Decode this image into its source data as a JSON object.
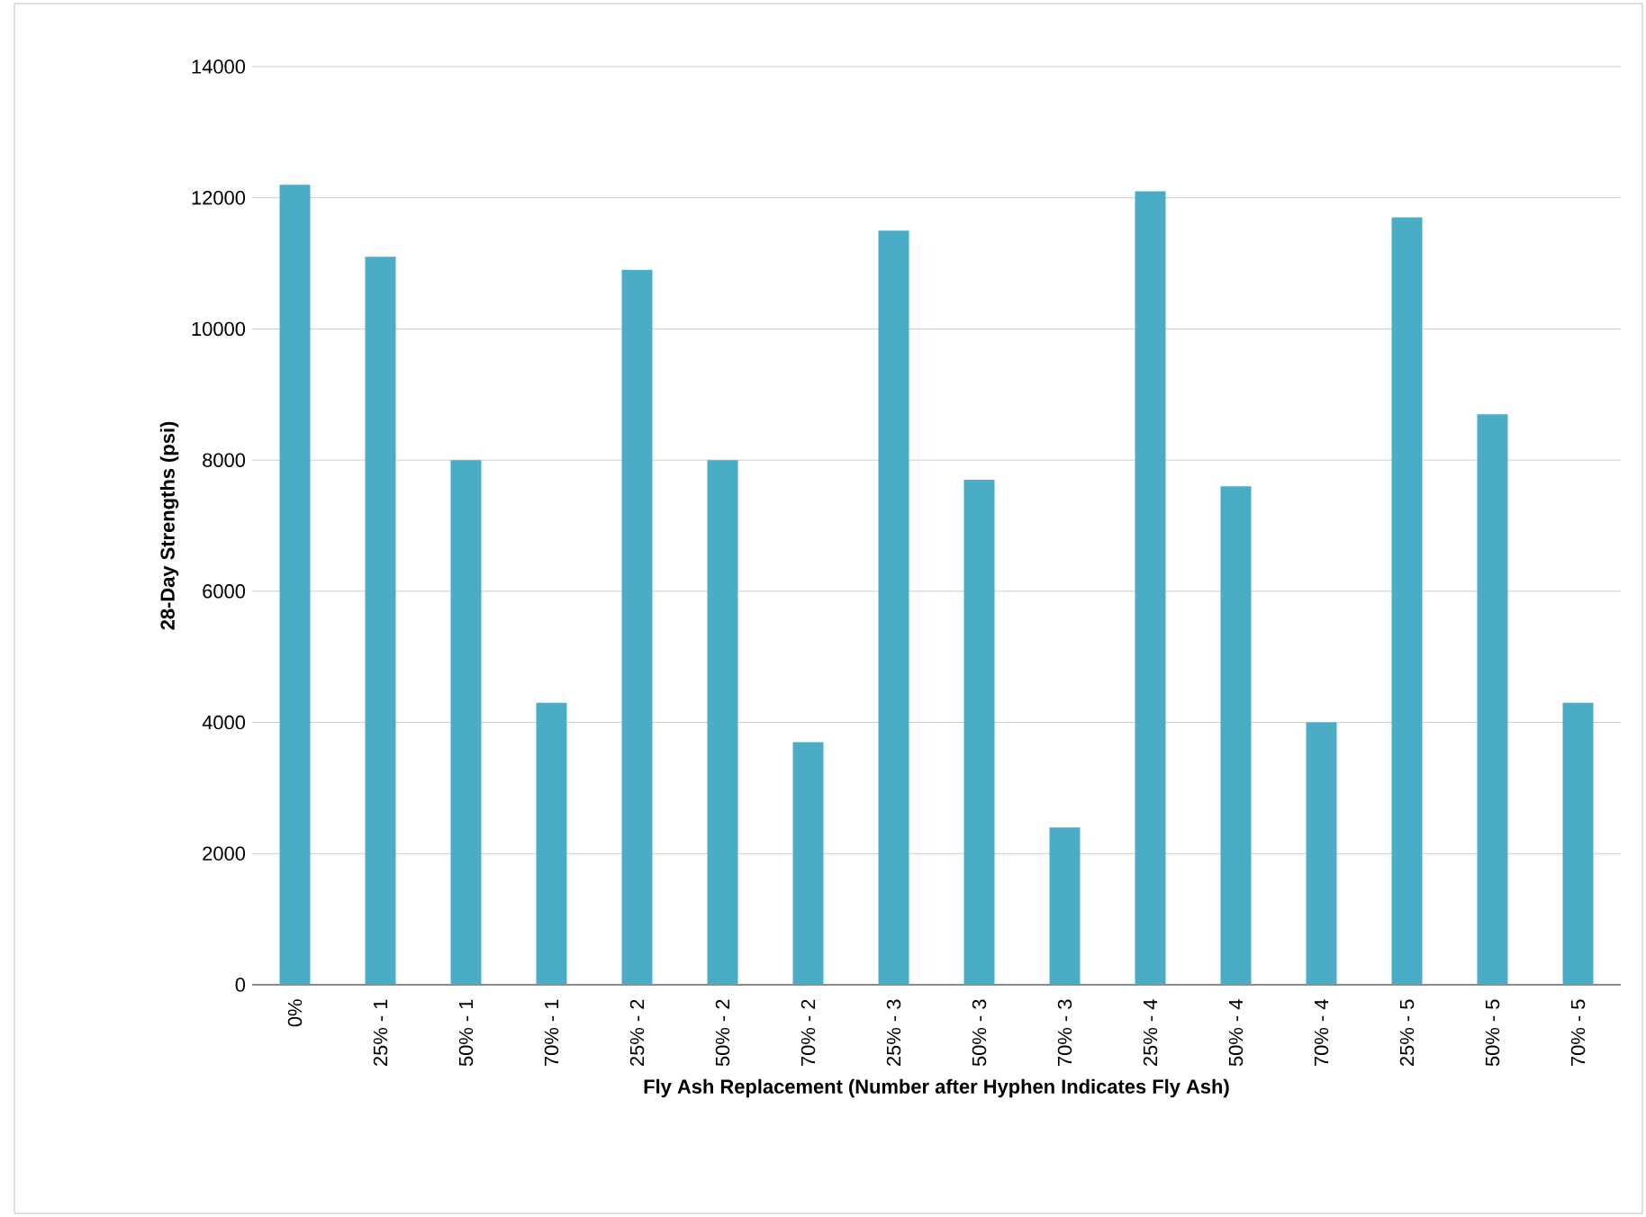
{
  "chart_data": {
    "type": "bar",
    "xlabel": "Fly Ash Replacement (Number after Hyphen Indicates Fly Ash)",
    "ylabel": "28-Day Strengths (psi)",
    "categories": [
      "0%",
      "25% - 1",
      "50% - 1",
      "70% - 1",
      "25% - 2",
      "50% - 2",
      "70% - 2",
      "25% - 3",
      "50% - 3",
      "70% - 3",
      "25% - 4",
      "50% - 4",
      "70% - 4",
      "25% - 5",
      "50% - 5",
      "70% - 5"
    ],
    "values": [
      12200,
      11100,
      8000,
      4300,
      10900,
      8000,
      3700,
      11500,
      7700,
      2400,
      12100,
      7600,
      4000,
      11700,
      8700,
      4300
    ],
    "color": "#4bacc6",
    "ylim": [
      0,
      14000
    ],
    "yticks": [
      0,
      2000,
      4000,
      6000,
      8000,
      10000,
      12000,
      14000
    ],
    "grid": "y"
  }
}
